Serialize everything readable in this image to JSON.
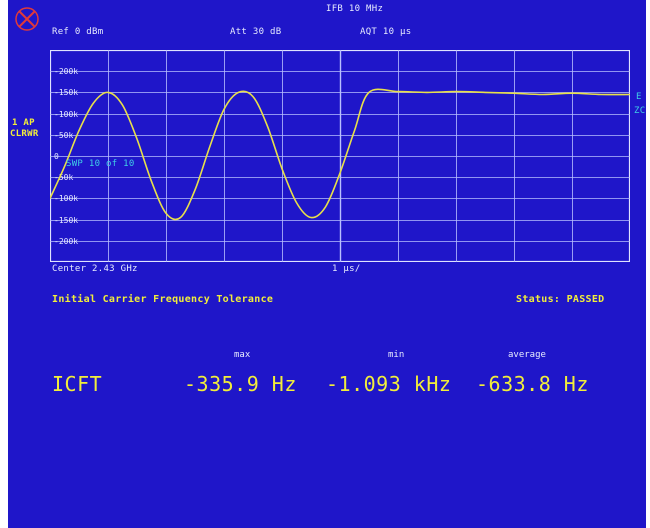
{
  "top": {
    "ifb": "IFB 10 MHz",
    "ref": "Ref  0 dBm",
    "att": "Att  30 dB",
    "aqt": "AQT 10 µs"
  },
  "side_left": {
    "line1": "1 AP",
    "line2": "CLRWR"
  },
  "side_right": {
    "line1": "E",
    "line2": "ZC"
  },
  "plot": {
    "y_ticks": [
      "-200k",
      "-150k",
      "-100k",
      "-50k",
      "0",
      "-50k",
      "-100k",
      "-150k",
      "-200k"
    ],
    "inline_label": "SWP  10 of  10",
    "center": "Center 2.43 GHz",
    "span": "1 µs/"
  },
  "chart_data": {
    "type": "line",
    "title": "",
    "xlabel": "",
    "ylabel": "",
    "xlim": [
      0,
      10
    ],
    "ylim": [
      -250,
      250
    ],
    "series": [
      {
        "x": [
          0,
          0.25,
          0.5,
          0.75,
          1,
          1.25,
          1.5,
          1.75,
          2,
          2.25,
          2.5,
          2.75,
          3,
          3.25,
          3.5,
          3.75,
          4,
          4.25,
          4.5,
          4.75,
          5,
          5.25,
          5.5,
          6,
          6.5,
          7,
          7.5,
          8,
          8.5,
          9,
          9.5,
          10
        ],
        "values": [
          -100,
          -25,
          60,
          125,
          150,
          120,
          40,
          -60,
          -135,
          -145,
          -80,
          20,
          110,
          150,
          140,
          70,
          -30,
          -110,
          -145,
          -120,
          -40,
          60,
          150,
          152,
          150,
          152,
          150,
          148,
          145,
          148,
          145,
          145
        ]
      }
    ]
  },
  "title_line": {
    "left": "Initial Carrier Frequency Tolerance",
    "right": "Status: PASSED"
  },
  "results": {
    "headers": [
      "max",
      "min",
      "average"
    ],
    "label": "ICFT",
    "max": "-335.9 Hz",
    "min": "-1.093 kHz",
    "average": "-633.8 Hz"
  },
  "colors": {
    "background": "#1f16c9",
    "trace": "#e8e04a",
    "text": "#e7ebff",
    "accent": "#f2ee3a"
  }
}
